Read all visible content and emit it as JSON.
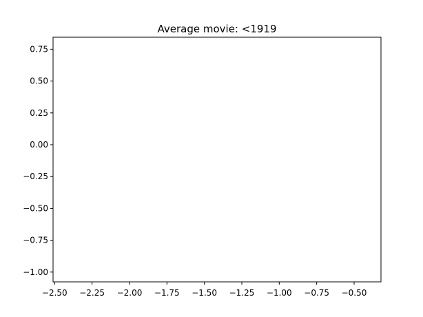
{
  "chart_data": {
    "type": "scatter",
    "title": "Average movie: <1919",
    "xlabel": "",
    "ylabel": "",
    "xlim": [
      -2.555,
      -2.808
    ],
    "ylim": [
      -1.075,
      0.84
    ],
    "x_ticks": [
      -2.5,
      -2.25,
      -2.0,
      -1.75,
      -1.5,
      -1.25,
      -1.0,
      -0.75,
      -0.5
    ],
    "x_tick_labels": [
      "−2.50",
      "−2.25",
      "−2.00",
      "−1.75",
      "−1.50",
      "−1.25",
      "−1.00",
      "−0.75",
      "−0.50"
    ],
    "y_ticks": [
      0.75,
      0.5,
      0.25,
      0.0,
      -0.25,
      -0.5,
      -0.75,
      -1.0
    ],
    "y_tick_labels": [
      "0.75",
      "0.50",
      "0.25",
      "0.00",
      "−0.25",
      "−0.50",
      "−0.75",
      "−1.00"
    ],
    "grid": false,
    "series": []
  }
}
